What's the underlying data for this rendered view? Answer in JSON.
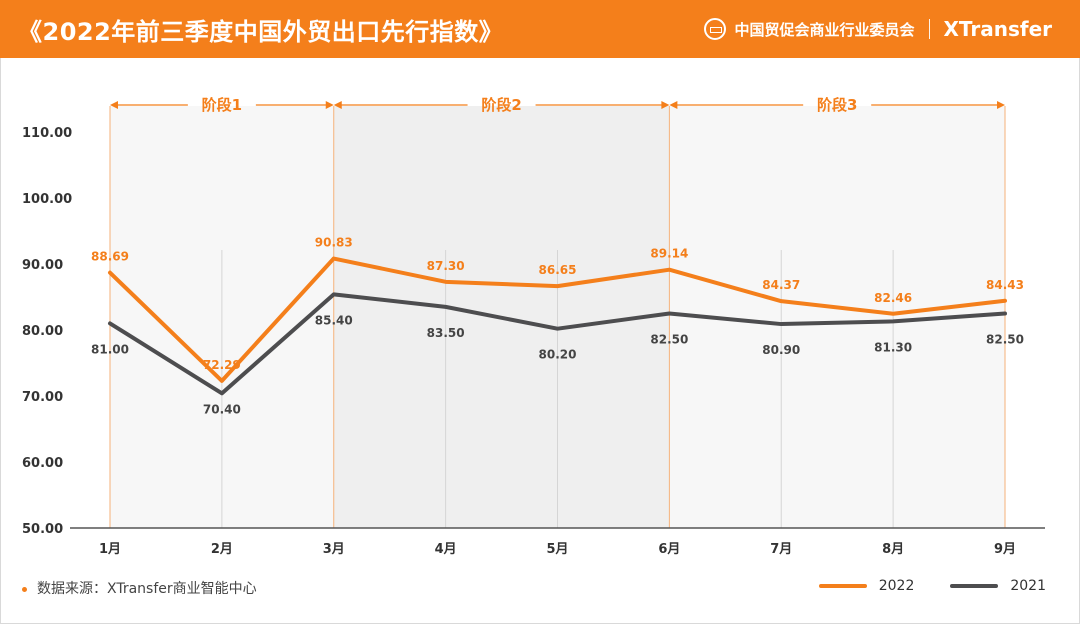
{
  "header": {
    "title": "《2022年前三季度中国外贸出口先行指数》",
    "org": "中国贸促会商业行业委员会",
    "brand": "XTransfer"
  },
  "footer": {
    "source": "数据来源：XTransfer商业智能中心"
  },
  "colors": {
    "accent": "#f47f1b",
    "series2021": "#4d4d4f",
    "header_bg": "#f47f1b"
  },
  "icons": {
    "org_seal": "ccpit-seal-logo"
  },
  "chart_data": {
    "type": "line",
    "title": "《2022年前三季度中国外贸出口先行指数》",
    "categories": [
      "1月",
      "2月",
      "3月",
      "4月",
      "5月",
      "6月",
      "7月",
      "8月",
      "9月"
    ],
    "yticks": [
      "50.00",
      "60.00",
      "70.00",
      "80.00",
      "90.00",
      "100.00",
      "110.00"
    ],
    "ylim": [
      50,
      110
    ],
    "grid": "vertical lines at each month",
    "legend_position": "bottom-right",
    "series": [
      {
        "name": "2022",
        "values": [
          88.69,
          72.29,
          90.83,
          87.3,
          86.65,
          89.14,
          84.37,
          82.46,
          84.43
        ],
        "labels": [
          "88.69",
          "72.29",
          "90.83",
          "87.30",
          "86.65",
          "89.14",
          "84.37",
          "82.46",
          "84.43"
        ],
        "color": "#f47f1b"
      },
      {
        "name": "2021",
        "values": [
          81.0,
          70.4,
          85.4,
          83.5,
          80.2,
          82.5,
          80.9,
          81.3,
          82.5
        ],
        "labels": [
          "81.00",
          "70.40",
          "85.40",
          "83.50",
          "80.20",
          "82.50",
          "80.90",
          "81.30",
          "82.50"
        ],
        "color": "#4d4d4f"
      }
    ],
    "stages": [
      {
        "label": "阶段1",
        "from": "1月",
        "to": "3月"
      },
      {
        "label": "阶段2",
        "from": "3月",
        "to": "6月"
      },
      {
        "label": "阶段3",
        "from": "6月",
        "to": "9月"
      }
    ]
  }
}
